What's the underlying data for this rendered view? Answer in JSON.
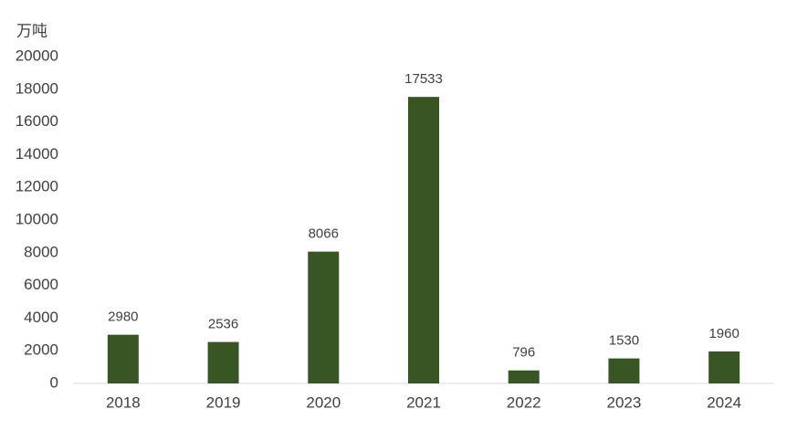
{
  "chart_data": {
    "type": "bar",
    "ylabel": "万吨",
    "categories": [
      "2018",
      "2019",
      "2020",
      "2021",
      "2022",
      "2023",
      "2024"
    ],
    "values": [
      2980,
      2536,
      8066,
      17533,
      796,
      1530,
      1960
    ],
    "color": "#375623",
    "ylim": [
      0,
      20000
    ],
    "yticks": [
      0,
      2000,
      4000,
      6000,
      8000,
      10000,
      12000,
      14000,
      16000,
      18000,
      20000
    ],
    "grid": false,
    "data_labels": true
  }
}
